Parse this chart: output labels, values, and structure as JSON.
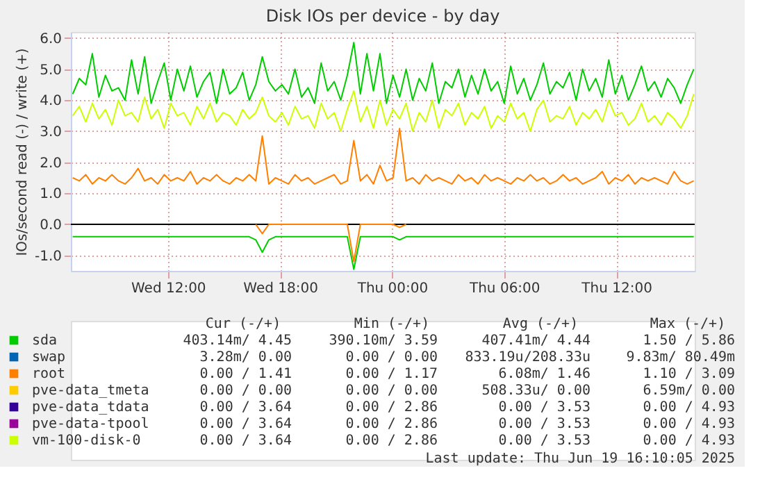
{
  "chart_data": {
    "type": "line",
    "title": "Disk IOs per device - by day",
    "ylabel": "IOs/second read (-) / write (+)",
    "x": [
      "2025-06-18T06:54",
      "2025-06-18T07:15",
      "2025-06-18T07:36",
      "2025-06-18T07:57",
      "2025-06-18T08:18",
      "2025-06-18T08:39",
      "2025-06-18T09:00",
      "2025-06-18T09:21",
      "2025-06-18T09:42",
      "2025-06-18T10:03",
      "2025-06-18T10:24",
      "2025-06-18T10:45",
      "2025-06-18T11:06",
      "2025-06-18T11:27",
      "2025-06-18T11:48",
      "2025-06-18T12:09",
      "2025-06-18T12:30",
      "2025-06-18T12:51",
      "2025-06-18T13:12",
      "2025-06-18T13:33",
      "2025-06-18T13:54",
      "2025-06-18T14:15",
      "2025-06-18T14:36",
      "2025-06-18T14:57",
      "2025-06-18T15:18",
      "2025-06-18T15:39",
      "2025-06-18T16:00",
      "2025-06-18T16:21",
      "2025-06-18T16:42",
      "2025-06-18T17:03",
      "2025-06-18T17:24",
      "2025-06-18T17:45",
      "2025-06-18T18:06",
      "2025-06-18T18:27",
      "2025-06-18T18:48",
      "2025-06-18T19:09",
      "2025-06-18T19:30",
      "2025-06-18T19:51",
      "2025-06-18T20:12",
      "2025-06-18T20:33",
      "2025-06-18T20:54",
      "2025-06-18T21:15",
      "2025-06-18T21:36",
      "2025-06-18T21:57",
      "2025-06-18T22:18",
      "2025-06-18T22:39",
      "2025-06-18T23:00",
      "2025-06-18T23:21",
      "2025-06-18T23:42",
      "2025-06-19T00:03",
      "2025-06-19T00:24",
      "2025-06-19T00:45",
      "2025-06-19T01:06",
      "2025-06-19T01:27",
      "2025-06-19T01:48",
      "2025-06-19T02:09",
      "2025-06-19T02:30",
      "2025-06-19T02:51",
      "2025-06-19T03:12",
      "2025-06-19T03:33",
      "2025-06-19T03:54",
      "2025-06-19T04:15",
      "2025-06-19T04:36",
      "2025-06-19T04:57",
      "2025-06-19T05:18",
      "2025-06-19T05:39",
      "2025-06-19T06:00",
      "2025-06-19T06:21",
      "2025-06-19T06:42",
      "2025-06-19T07:03",
      "2025-06-19T07:24",
      "2025-06-19T07:45",
      "2025-06-19T08:06",
      "2025-06-19T08:27",
      "2025-06-19T08:48",
      "2025-06-19T09:09",
      "2025-06-19T09:30",
      "2025-06-19T09:51",
      "2025-06-19T10:12",
      "2025-06-19T10:33",
      "2025-06-19T10:54",
      "2025-06-19T11:15",
      "2025-06-19T11:36",
      "2025-06-19T11:57",
      "2025-06-19T12:18",
      "2025-06-19T12:39",
      "2025-06-19T13:00",
      "2025-06-19T13:21",
      "2025-06-19T13:42",
      "2025-06-19T14:03",
      "2025-06-19T14:24",
      "2025-06-19T14:45",
      "2025-06-19T15:06",
      "2025-06-19T15:27",
      "2025-06-19T15:48",
      "2025-06-19T16:09"
    ],
    "xlim": [
      "2025-06-18T06:48",
      "2025-06-19T16:12"
    ],
    "xticks": [
      {
        "value": "2025-06-18T12:00",
        "label": "Wed 12:00"
      },
      {
        "value": "2025-06-18T18:00",
        "label": "Wed 18:00"
      },
      {
        "value": "2025-06-19T00:00",
        "label": "Thu 00:00"
      },
      {
        "value": "2025-06-19T06:00",
        "label": "Thu 06:00"
      },
      {
        "value": "2025-06-19T12:00",
        "label": "Thu 12:00"
      }
    ],
    "ylim": [
      -1.5,
      6.2
    ],
    "yticks": [
      {
        "value": -1,
        "label": "-1.0"
      },
      {
        "value": 0,
        "label": "0.0"
      },
      {
        "value": 1,
        "label": "1.0"
      },
      {
        "value": 2,
        "label": "2.0"
      },
      {
        "value": 3,
        "label": "3.0"
      },
      {
        "value": 4,
        "label": "4.0"
      },
      {
        "value": 5,
        "label": "5.0"
      },
      {
        "value": 6,
        "label": "6.0"
      }
    ],
    "grid": true,
    "legend": "bottom",
    "ref_lines": [
      {
        "axis": "y",
        "value": 0,
        "label": null,
        "color": "#000000"
      }
    ],
    "series": [
      {
        "name": "sda",
        "color": "#00cc00",
        "values": [
          4.2,
          4.7,
          4.5,
          5.5,
          4.1,
          4.8,
          4.3,
          4.4,
          4.0,
          5.3,
          4.2,
          5.4,
          3.9,
          4.6,
          5.2,
          4.0,
          5.0,
          4.3,
          5.1,
          4.1,
          4.6,
          4.9,
          3.9,
          5.0,
          4.2,
          4.4,
          4.9,
          4.0,
          4.5,
          5.4,
          4.6,
          4.3,
          4.5,
          4.2,
          5.0,
          4.1,
          4.4,
          3.9,
          5.2,
          4.3,
          4.6,
          4.0,
          4.8,
          5.86,
          4.2,
          5.5,
          4.3,
          5.5,
          3.9,
          4.8,
          4.1,
          5.0,
          4.0,
          4.7,
          4.3,
          5.2,
          3.9,
          4.6,
          4.4,
          5.0,
          4.1,
          4.8,
          4.2,
          5.0,
          4.3,
          4.6,
          3.9,
          5.1,
          4.2,
          4.7,
          4.0,
          4.5,
          5.2,
          4.2,
          4.6,
          4.4,
          4.9,
          4.0,
          5.0,
          4.3,
          4.7,
          4.1,
          5.3,
          4.2,
          4.8,
          4.0,
          4.5,
          5.1,
          4.3,
          4.6,
          4.1,
          4.7,
          4.4,
          3.9,
          4.5,
          5.0
        ]
      },
      {
        "color": "#00cc00",
        "values": [
          -0.4,
          -0.4,
          -0.4,
          -0.4,
          -0.4,
          -0.4,
          -0.4,
          -0.4,
          -0.4,
          -0.4,
          -0.4,
          -0.4,
          -0.4,
          -0.4,
          -0.4,
          -0.4,
          -0.4,
          -0.4,
          -0.4,
          -0.4,
          -0.4,
          -0.4,
          -0.4,
          -0.4,
          -0.4,
          -0.4,
          -0.4,
          -0.4,
          -0.5,
          -0.9,
          -0.5,
          -0.4,
          -0.4,
          -0.4,
          -0.4,
          -0.4,
          -0.4,
          -0.4,
          -0.4,
          -0.4,
          -0.4,
          -0.4,
          -0.4,
          -1.45,
          -0.4,
          -0.4,
          -0.4,
          -0.4,
          -0.4,
          -0.4,
          -0.5,
          -0.4,
          -0.4,
          -0.4,
          -0.4,
          -0.4,
          -0.4,
          -0.4,
          -0.4,
          -0.4,
          -0.4,
          -0.4,
          -0.4,
          -0.4,
          -0.4,
          -0.4,
          -0.4,
          -0.4,
          -0.4,
          -0.4,
          -0.4,
          -0.4,
          -0.4,
          -0.4,
          -0.4,
          -0.4,
          -0.4,
          -0.4,
          -0.4,
          -0.4,
          -0.4,
          -0.4,
          -0.4,
          -0.4,
          -0.4,
          -0.4,
          -0.4,
          -0.4,
          -0.4,
          -0.4,
          -0.4,
          -0.4,
          -0.4,
          -0.4,
          -0.4,
          -0.4
        ]
      },
      {
        "name": "swap",
        "color": "#0066b3",
        "values": [
          null,
          null,
          null,
          null,
          null,
          null,
          null,
          null,
          null,
          null,
          null,
          null,
          null,
          null,
          null,
          null,
          null,
          null,
          null,
          null,
          null,
          null,
          null,
          null,
          null,
          null,
          null,
          null,
          null,
          null,
          null,
          null,
          null,
          null,
          null,
          null,
          null,
          null,
          null,
          null,
          null,
          null,
          null,
          null,
          null,
          null,
          null,
          null,
          null,
          null,
          null,
          null,
          null,
          null,
          null,
          null,
          null,
          null,
          null,
          null,
          null,
          null,
          null,
          null,
          null,
          null,
          null,
          null,
          null,
          null,
          null,
          null,
          null,
          null,
          null,
          null,
          null,
          null,
          null,
          null,
          null,
          null,
          null,
          null,
          null,
          null,
          null,
          null,
          null,
          null,
          null,
          null,
          null,
          null,
          null,
          null
        ]
      },
      {
        "name": "root",
        "color": "#ff8000",
        "values": [
          1.5,
          1.4,
          1.6,
          1.3,
          1.5,
          1.4,
          1.6,
          1.4,
          1.3,
          1.5,
          1.8,
          1.4,
          1.5,
          1.3,
          1.6,
          1.4,
          1.5,
          1.4,
          1.7,
          1.3,
          1.5,
          1.4,
          1.6,
          1.4,
          1.3,
          1.5,
          1.4,
          1.6,
          1.4,
          2.85,
          1.3,
          1.5,
          1.4,
          1.3,
          1.6,
          1.4,
          1.5,
          1.3,
          1.4,
          1.5,
          1.6,
          1.3,
          1.4,
          2.7,
          1.4,
          1.6,
          1.3,
          1.9,
          1.4,
          1.5,
          3.09,
          1.4,
          1.5,
          1.3,
          1.6,
          1.4,
          1.5,
          1.4,
          1.3,
          1.6,
          1.4,
          1.5,
          1.3,
          1.6,
          1.4,
          1.5,
          1.4,
          1.3,
          1.5,
          1.4,
          1.6,
          1.4,
          1.5,
          1.3,
          1.4,
          1.6,
          1.4,
          1.5,
          1.3,
          1.4,
          1.5,
          1.7,
          1.3,
          1.5,
          1.4,
          1.6,
          1.3,
          1.5,
          1.4,
          1.5,
          1.4,
          1.3,
          1.7,
          1.4,
          1.3,
          1.4
        ]
      },
      {
        "color": "#ff8000",
        "values": [
          null,
          null,
          null,
          null,
          null,
          null,
          null,
          null,
          null,
          null,
          null,
          null,
          null,
          null,
          null,
          null,
          null,
          null,
          null,
          null,
          null,
          null,
          null,
          null,
          null,
          null,
          null,
          null,
          0,
          -0.3,
          0,
          null,
          null,
          null,
          null,
          null,
          null,
          null,
          null,
          null,
          null,
          null,
          0,
          -1.2,
          0,
          null,
          null,
          null,
          null,
          0,
          -0.1,
          0,
          null,
          null,
          null,
          null,
          null,
          null,
          null,
          null,
          null,
          null,
          null,
          null,
          null,
          null,
          null,
          null,
          null,
          null,
          null,
          null,
          null,
          null,
          null,
          null,
          null,
          null,
          null,
          null,
          null,
          null,
          null,
          null,
          null,
          null,
          null,
          null,
          null,
          null,
          null,
          null,
          null,
          null,
          null,
          null
        ]
      },
      {
        "name": "pve-data_tmeta",
        "color": "#ffcc00",
        "values": [
          null,
          null,
          null,
          null,
          null,
          null,
          null,
          null,
          null,
          null,
          null,
          null,
          null,
          null,
          null,
          null,
          null,
          null,
          null,
          null,
          null,
          null,
          null,
          null,
          null,
          null,
          null,
          null,
          null,
          null,
          null,
          null,
          null,
          null,
          null,
          null,
          null,
          null,
          null,
          null,
          null,
          null,
          null,
          null,
          null,
          null,
          null,
          null,
          null,
          null,
          null,
          null,
          null,
          null,
          null,
          null,
          null,
          null,
          null,
          null,
          null,
          null,
          null,
          null,
          null,
          null,
          null,
          null,
          null,
          null,
          null,
          null,
          null,
          null,
          null,
          null,
          null,
          null,
          null,
          null,
          null,
          null,
          null,
          null,
          null,
          null,
          null,
          null,
          null,
          null,
          null,
          null,
          null,
          null,
          null,
          null
        ]
      },
      {
        "name": "pve-data_tdata",
        "color": "#330099",
        "values": [
          null,
          null,
          null,
          null,
          null,
          null,
          null,
          null,
          null,
          null,
          null,
          null,
          null,
          null,
          null,
          null,
          null,
          null,
          null,
          null,
          null,
          null,
          null,
          null,
          null,
          null,
          null,
          null,
          null,
          null,
          null,
          null,
          null,
          null,
          null,
          null,
          null,
          null,
          null,
          null,
          null,
          null,
          null,
          null,
          null,
          null,
          null,
          null,
          null,
          null,
          null,
          null,
          null,
          null,
          null,
          null,
          null,
          null,
          null,
          null,
          null,
          null,
          null,
          null,
          null,
          null,
          null,
          null,
          null,
          null,
          null,
          null,
          null,
          null,
          null,
          null,
          null,
          null,
          null,
          null,
          null,
          null,
          null,
          null,
          null,
          null,
          null,
          null,
          null,
          null,
          null,
          null,
          null,
          null,
          null,
          null
        ]
      },
      {
        "name": "pve-data-tpool",
        "color": "#990099",
        "values": [
          null,
          null,
          null,
          null,
          null,
          null,
          null,
          null,
          null,
          null,
          null,
          null,
          null,
          null,
          null,
          null,
          null,
          null,
          null,
          null,
          null,
          null,
          null,
          null,
          null,
          null,
          null,
          null,
          null,
          null,
          null,
          null,
          null,
          null,
          null,
          null,
          null,
          null,
          null,
          null,
          null,
          null,
          null,
          null,
          null,
          null,
          null,
          null,
          null,
          null,
          null,
          null,
          null,
          null,
          null,
          null,
          null,
          null,
          null,
          null,
          null,
          null,
          null,
          null,
          null,
          null,
          null,
          null,
          null,
          null,
          null,
          null,
          null,
          null,
          null,
          null,
          null,
          null,
          null,
          null,
          null,
          null,
          null,
          null,
          null,
          null,
          null,
          null,
          null,
          null,
          null,
          null,
          null,
          null,
          null,
          null
        ]
      },
      {
        "name": "vm-100-disk-0",
        "color": "#ccff00",
        "values": [
          3.5,
          3.8,
          3.3,
          3.9,
          3.4,
          3.7,
          3.2,
          4.0,
          3.5,
          3.6,
          3.3,
          4.1,
          3.4,
          3.7,
          3.1,
          3.9,
          3.5,
          3.6,
          3.2,
          3.8,
          3.4,
          3.9,
          3.3,
          3.6,
          3.5,
          3.2,
          3.7,
          3.4,
          3.6,
          4.1,
          3.5,
          3.3,
          3.6,
          3.2,
          3.8,
          3.4,
          3.5,
          3.1,
          3.9,
          3.4,
          3.6,
          3.0,
          3.7,
          4.3,
          3.3,
          3.8,
          3.1,
          4.0,
          3.2,
          3.7,
          3.4,
          3.9,
          3.0,
          3.6,
          3.3,
          4.0,
          3.1,
          3.7,
          3.5,
          3.9,
          3.2,
          3.6,
          3.4,
          3.8,
          3.1,
          3.5,
          3.3,
          3.9,
          3.4,
          3.6,
          3.0,
          3.7,
          4.0,
          3.3,
          3.5,
          3.4,
          3.8,
          3.2,
          3.6,
          3.4,
          3.7,
          3.3,
          4.0,
          3.5,
          3.6,
          3.2,
          3.4,
          3.9,
          3.3,
          3.5,
          3.2,
          3.6,
          3.4,
          3.1,
          3.5,
          4.2
        ]
      }
    ],
    "annotations": [
      "Cur (-/+)",
      "Min (-/+)",
      "Avg (-/+)",
      "Max (-/+)",
      "403.14m/ 4.45",
      "390.10m/ 3.59",
      "407.41m/ 4.44",
      "1.50 / 5.86",
      "3.28m/ 0.00",
      "0.00 / 0.00",
      "833.19u/208.33u",
      "9.83m/ 80.49m",
      "0.00 / 1.41",
      "0.00 / 1.17",
      "6.08m/ 1.46",
      "1.10 / 3.09",
      "0.00 / 0.00",
      "0.00 / 0.00",
      "508.33u/ 0.00",
      "6.59m/ 0.00",
      "0.00 / 3.64",
      "0.00 / 2.86",
      "0.00 / 3.53",
      "0.00 / 4.93",
      "0.00 / 3.64",
      "0.00 / 2.86",
      "0.00 / 3.53",
      "0.00 / 4.93",
      "0.00 / 3.64",
      "0.00 / 2.86",
      "0.00 / 3.53",
      "0.00 / 4.93",
      "Last update: Thu Jun 19 16:10:05 2025"
    ]
  }
}
